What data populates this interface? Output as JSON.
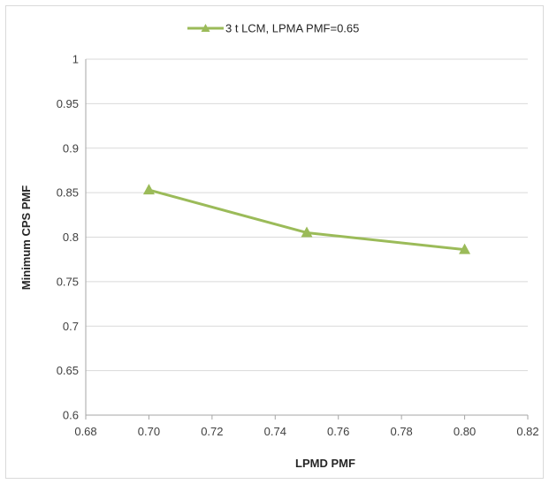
{
  "chart_data": {
    "type": "line",
    "title": "",
    "xlabel": "LPMD PMF",
    "ylabel": "Minimum CPS PMF",
    "xlim": [
      0.68,
      0.82
    ],
    "ylim": [
      0.6,
      1.0
    ],
    "x_ticks": [
      "0.68",
      "0.70",
      "0.72",
      "0.74",
      "0.76",
      "0.78",
      "0.80",
      "0.82"
    ],
    "y_ticks": [
      "0.6",
      "0.65",
      "0.7",
      "0.75",
      "0.8",
      "0.85",
      "0.9",
      "0.95",
      "1"
    ],
    "grid": "horizontal",
    "legend_position": "top",
    "series": [
      {
        "name": "3 t LCM, LPMA PMF=0.65",
        "color": "#9bbb59",
        "marker": "triangle",
        "x": [
          0.7,
          0.75,
          0.8
        ],
        "y": [
          0.853,
          0.805,
          0.786
        ]
      }
    ]
  }
}
